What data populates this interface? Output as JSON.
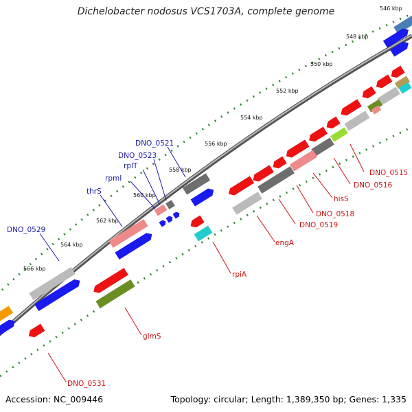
{
  "title": "Dichelobacter nodosus VCS1703A, complete genome",
  "footer": {
    "accession": "Accession: NC_009446",
    "summary": "Topology: circular; Length: 1,389,350 bp; Genes: 1,335"
  },
  "colors": {
    "forward_label": "#1a1aa8",
    "reverse_label": "#cc1111",
    "red": "#ee1111",
    "blue": "#1a1aee",
    "gray": "#bbbbbb",
    "dark_gray": "#6e6e6e",
    "pink": "#ef8a8a",
    "cyan": "#22cccc",
    "olive": "#6b8e23",
    "orange": "#f29a00",
    "green_ticks": "#2f8a2f",
    "backbone": "#777777"
  },
  "kbp_ticks": [
    "546 kbp",
    "548 kbp",
    "550 kbp",
    "552 kbp",
    "554 kbp",
    "556 kbp",
    "558 kbp",
    "560 kbp",
    "562 kbp",
    "564 kbp",
    "566 kbp"
  ],
  "labels": {
    "forward": [
      "DNO_0521",
      "DNO_0523",
      "rplT",
      "rpmI",
      "thrS",
      "DNO_0529"
    ],
    "reverse": [
      "DNO_0515",
      "DNO_0516",
      "hisS",
      "DNO_0518",
      "DNO_0519",
      "engA",
      "rpiA",
      "glmS",
      "DNO_0531"
    ]
  }
}
